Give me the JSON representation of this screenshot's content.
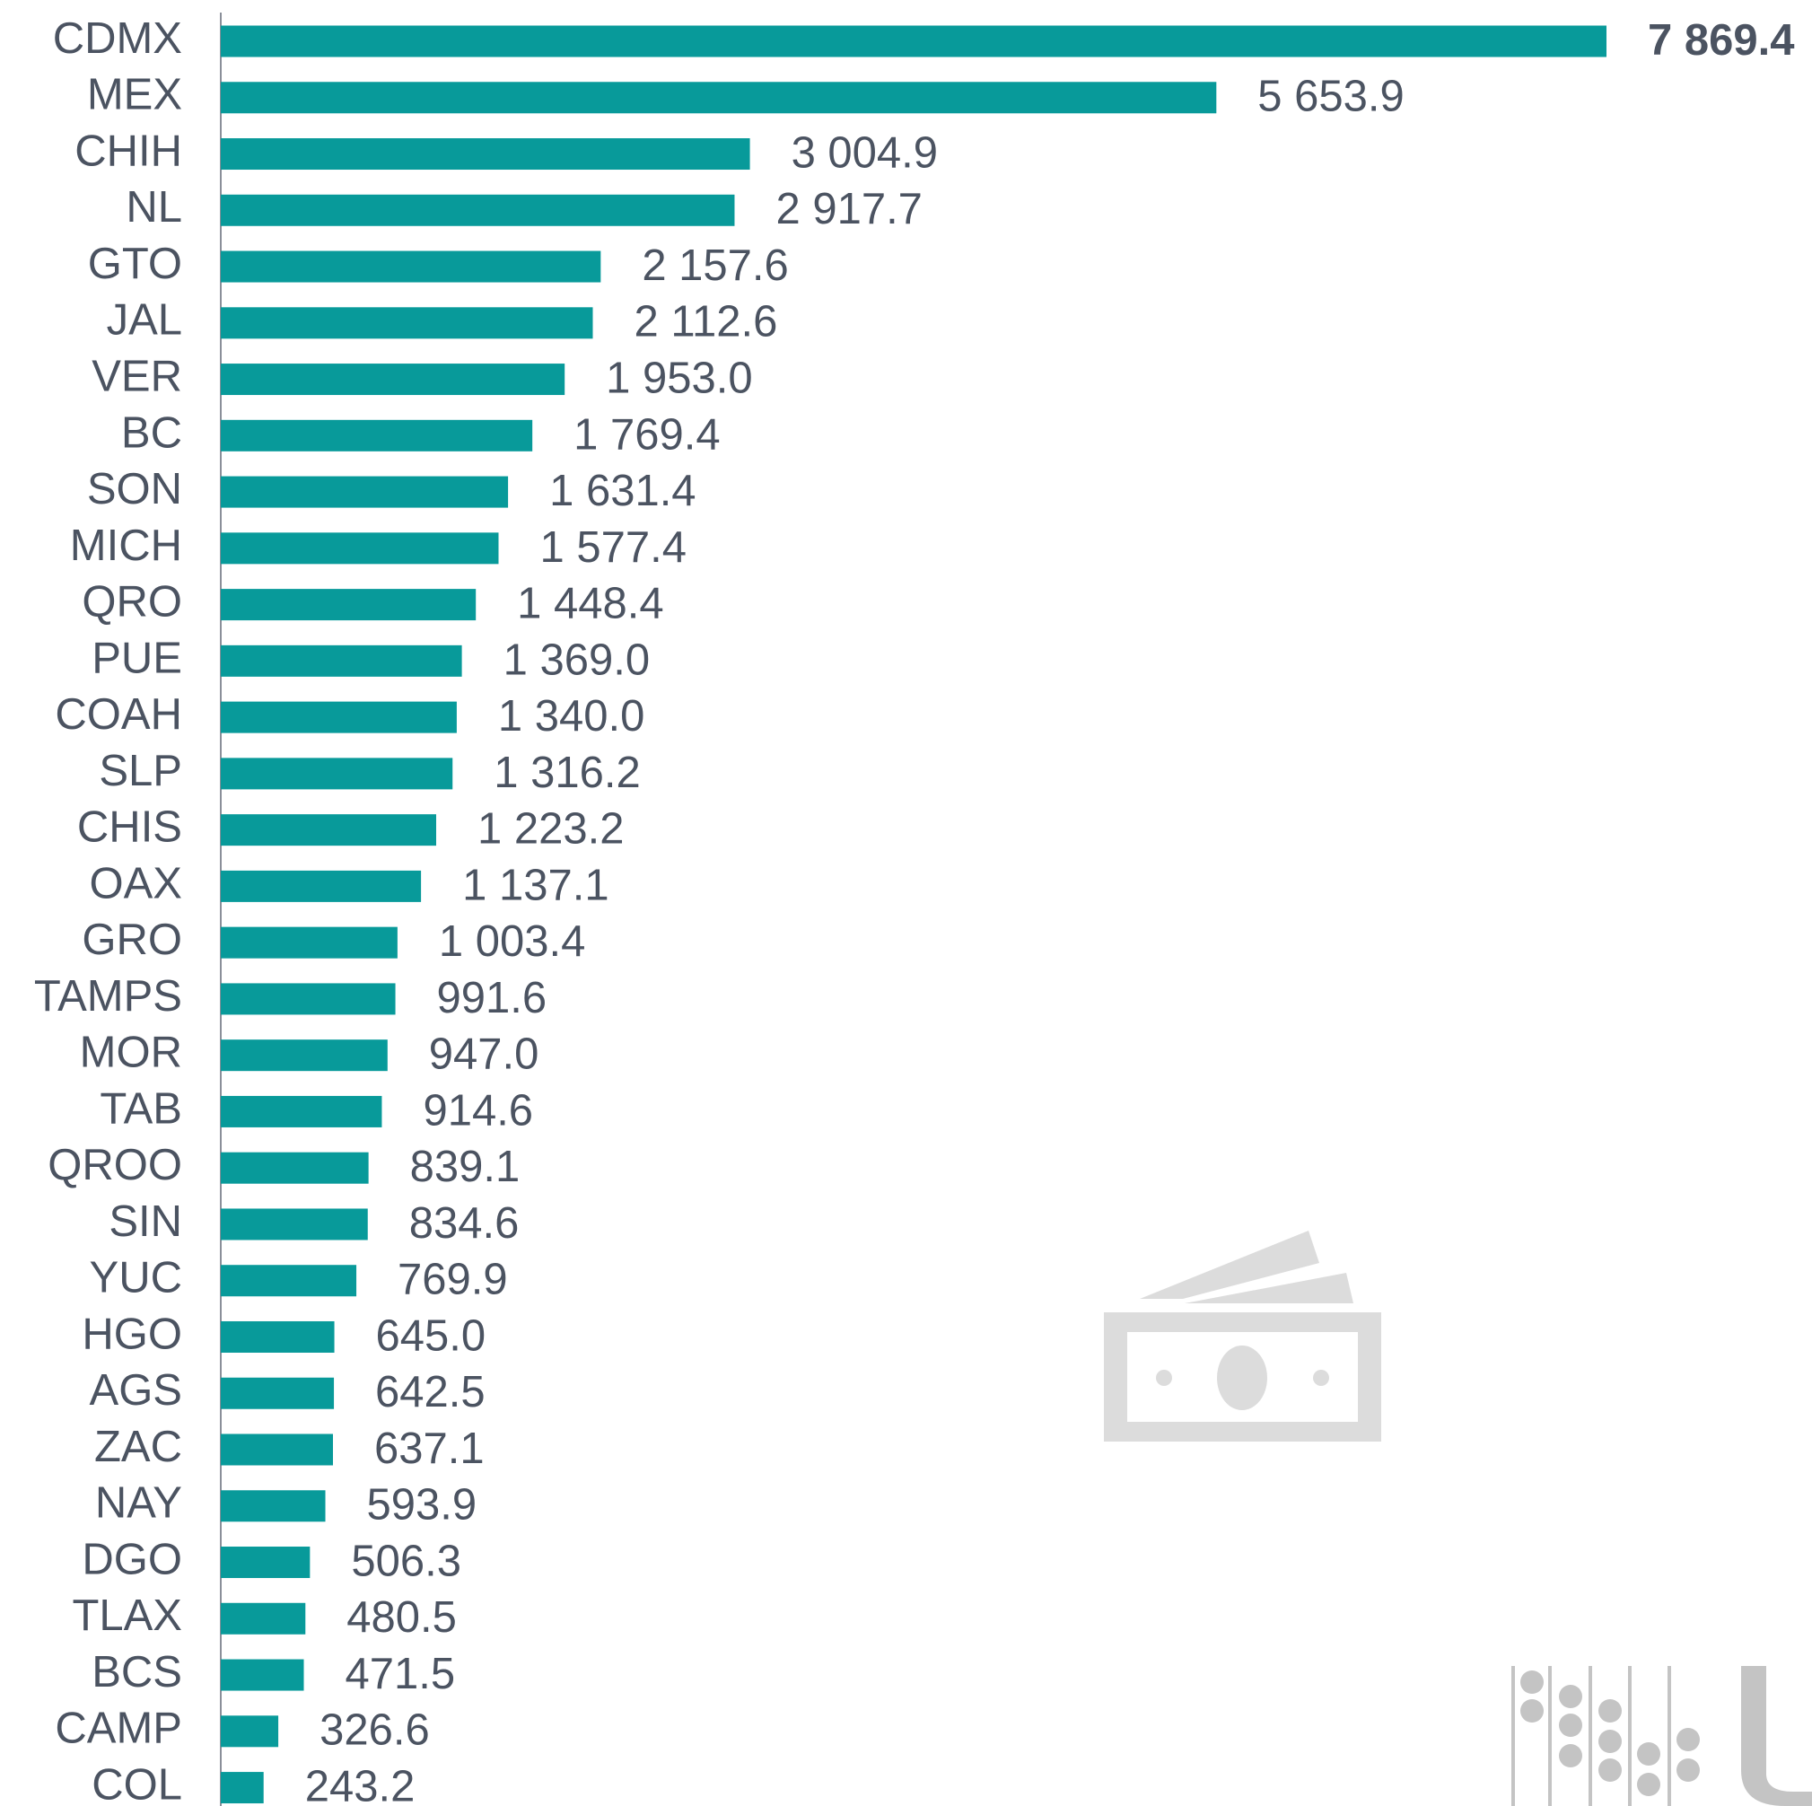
{
  "chart_data": {
    "type": "bar",
    "orientation": "horizontal",
    "color": "#089a9a",
    "categories": [
      "CDMX",
      "MEX",
      "CHIH",
      "NL",
      "GTO",
      "JAL",
      "VER",
      "BC",
      "SON",
      "MICH",
      "QRO",
      "PUE",
      "COAH",
      "SLP",
      "CHIS",
      "OAX",
      "GRO",
      "TAMPS",
      "MOR",
      "TAB",
      "QROO",
      "SIN",
      "YUC",
      "HGO",
      "AGS",
      "ZAC",
      "NAY",
      "DGO",
      "TLAX",
      "BCS",
      "CAMP",
      "COL"
    ],
    "values": [
      7869.4,
      5653.9,
      3004.9,
      2917.7,
      2157.6,
      2112.6,
      1953.0,
      1769.4,
      1631.4,
      1577.4,
      1448.4,
      1369.0,
      1340.0,
      1316.2,
      1223.2,
      1137.1,
      1003.4,
      991.6,
      947.0,
      914.6,
      839.1,
      834.6,
      769.9,
      645.0,
      642.5,
      637.1,
      593.9,
      506.3,
      480.5,
      471.5,
      326.6,
      243.2
    ],
    "value_labels": [
      "7 869.4",
      "5 653.9",
      "3 004.9",
      "2 917.7",
      "2 157.6",
      "2 112.6",
      "1 953.0",
      "1 769.4",
      "1 631.4",
      "1 577.4",
      "1 448.4",
      "1 369.0",
      "1 340.0",
      "1 316.2",
      "1 223.2",
      "1 137.1",
      "1 003.4",
      "991.6",
      "947.0",
      "914.6",
      "839.1",
      "834.6",
      "769.9",
      "645.0",
      "642.5",
      "637.1",
      "593.9",
      "506.3",
      "480.5",
      "471.5",
      "326.6",
      "243.2"
    ]
  }
}
